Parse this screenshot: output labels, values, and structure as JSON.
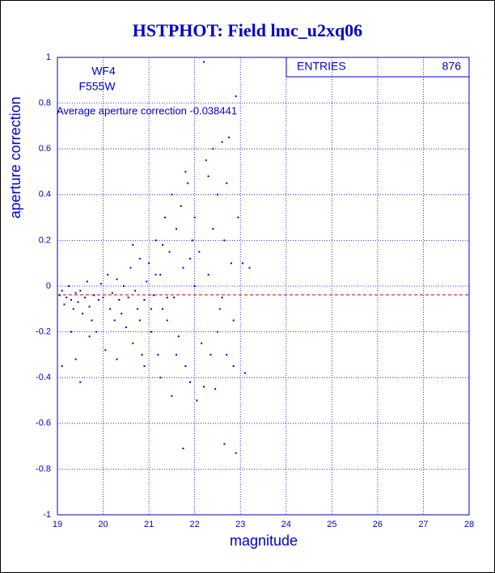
{
  "chart_data": {
    "type": "scatter",
    "title": "HSTPHOT: Field lmc_u2xq06",
    "xlabel": "magnitude",
    "ylabel": "aperture correction",
    "labels": [
      "WF4",
      "F555W"
    ],
    "stats": {
      "label": "ENTRIES",
      "value": 876
    },
    "mean_line": {
      "value": -0.038441,
      "label": "Average aperture correction -0.038441",
      "color": "#cc0000"
    },
    "color": "#0000cc",
    "grid": true,
    "xlim": [
      19,
      28
    ],
    "xticks": [
      19,
      20,
      21,
      22,
      23,
      24,
      25,
      26,
      27,
      28
    ],
    "ylim": [
      -1,
      1
    ],
    "yticks": [
      -1,
      -0.8,
      -0.6,
      -0.4,
      -0.2,
      0,
      0.2,
      0.4,
      0.6,
      0.8,
      1
    ],
    "x": [
      19.05,
      19.1,
      19.15,
      19.2,
      19.25,
      19.3,
      19.35,
      19.4,
      19.45,
      19.5,
      19.5,
      19.55,
      19.6,
      19.65,
      19.7,
      19.75,
      19.8,
      19.85,
      19.9,
      19.95,
      19.1,
      19.4,
      19.3,
      19.7,
      20.0,
      20.05,
      20.1,
      20.15,
      20.2,
      20.25,
      20.3,
      20.35,
      20.4,
      20.45,
      20.5,
      20.55,
      20.6,
      20.65,
      20.7,
      20.75,
      20.8,
      20.85,
      20.9,
      20.95,
      20.65,
      20.9,
      20.3,
      20.8,
      21.0,
      21.05,
      21.1,
      21.15,
      21.2,
      21.25,
      21.3,
      21.35,
      21.4,
      21.45,
      21.5,
      21.5,
      21.55,
      21.6,
      21.65,
      21.7,
      21.75,
      21.75,
      21.8,
      21.85,
      21.9,
      21.9,
      21.95,
      21.25,
      21.3,
      21.6,
      21.8,
      21.05,
      21.15,
      21.4,
      22.0,
      22.05,
      22.1,
      22.15,
      22.2,
      22.2,
      22.25,
      22.3,
      22.35,
      22.4,
      22.45,
      22.5,
      22.55,
      22.6,
      22.65,
      22.65,
      22.7,
      22.75,
      22.8,
      22.85,
      22.9,
      22.9,
      22.95,
      22.3,
      22.5,
      22.7,
      22.85,
      22.0,
      22.4,
      22.6,
      23.05,
      23.1,
      23.2
    ],
    "values": [
      -0.04,
      -0.02,
      -0.08,
      -0.05,
      0.0,
      -0.06,
      -0.1,
      -0.03,
      -0.07,
      -0.42,
      -0.02,
      -0.12,
      -0.05,
      0.02,
      -0.09,
      -0.15,
      -0.04,
      -0.2,
      -0.06,
      0.01,
      -0.35,
      -0.32,
      -0.2,
      -0.22,
      -0.05,
      -0.28,
      0.05,
      -0.1,
      -0.03,
      -0.15,
      0.03,
      -0.06,
      -0.12,
      0.0,
      -0.18,
      -0.05,
      0.08,
      -0.25,
      -0.02,
      -0.1,
      0.12,
      -0.3,
      -0.06,
      0.02,
      0.18,
      -0.35,
      -0.32,
      -0.15,
      0.1,
      -0.2,
      -0.04,
      0.2,
      -0.3,
      0.05,
      -0.1,
      0.3,
      -0.15,
      0.15,
      -0.48,
      0.4,
      -0.05,
      0.25,
      -0.22,
      0.35,
      -0.71,
      0.08,
      -0.35,
      0.45,
      -0.42,
      0.12,
      0.2,
      -0.4,
      0.18,
      -0.3,
      0.5,
      -0.1,
      0.05,
      -0.05,
      0.3,
      -0.5,
      0.15,
      -0.25,
      0.98,
      -0.44,
      0.55,
      0.05,
      -0.3,
      0.6,
      -0.45,
      0.4,
      -0.1,
      0.63,
      -0.69,
      0.2,
      -0.3,
      0.65,
      0.1,
      -0.35,
      0.83,
      -0.73,
      0.3,
      0.48,
      -0.2,
      0.45,
      -0.15,
      0.0,
      0.25,
      -0.05,
      0.1,
      -0.38,
      0.08
    ]
  }
}
